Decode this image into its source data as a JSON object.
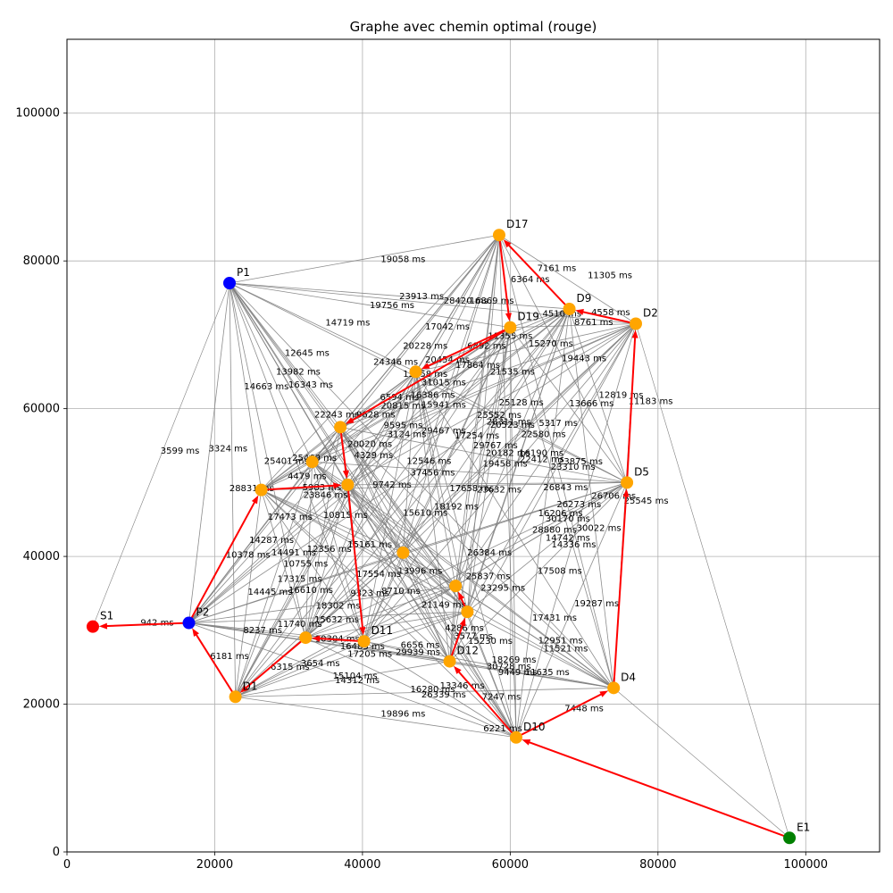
{
  "chart_data": {
    "type": "scatter",
    "title": "Graphe avec chemin optimal (rouge)",
    "xlim": [
      0,
      110000
    ],
    "ylim": [
      0,
      110000
    ],
    "xticks": [
      0,
      20000,
      40000,
      60000,
      80000,
      100000
    ],
    "yticks": [
      0,
      20000,
      40000,
      60000,
      80000,
      100000
    ],
    "grid": true,
    "colors": {
      "route": "#ff0000",
      "edge": "#808080",
      "destination": "#ffa500",
      "pickup": "#0000ff",
      "start": "#008000",
      "end": "#ff0000"
    },
    "nodes": [
      {
        "id": "E1",
        "x": 97800,
        "y": 1900,
        "kind": "start"
      },
      {
        "id": "S1",
        "x": 3500,
        "y": 30500,
        "kind": "end"
      },
      {
        "id": "P1",
        "x": 22000,
        "y": 77000,
        "kind": "pickup"
      },
      {
        "id": "P2",
        "x": 16500,
        "y": 31000,
        "kind": "pickup"
      },
      {
        "id": "D1",
        "x": 22800,
        "y": 21000,
        "kind": "destination"
      },
      {
        "id": "D2",
        "x": 77000,
        "y": 71500,
        "kind": "destination"
      },
      {
        "id": "D4",
        "x": 74000,
        "y": 22200,
        "kind": "destination"
      },
      {
        "id": "D5",
        "x": 75800,
        "y": 50000,
        "kind": "destination"
      },
      {
        "id": "D9",
        "x": 68000,
        "y": 73500,
        "kind": "destination"
      },
      {
        "id": "D10",
        "x": 60800,
        "y": 15500,
        "kind": "destination"
      },
      {
        "id": "D11",
        "x": 40200,
        "y": 28500,
        "kind": "destination"
      },
      {
        "id": "D12",
        "x": 51800,
        "y": 25800,
        "kind": "destination"
      },
      {
        "id": "D17",
        "x": 58500,
        "y": 83500,
        "kind": "destination"
      },
      {
        "id": "D19",
        "x": 60000,
        "y": 71000,
        "kind": "destination"
      },
      {
        "id": "",
        "x": 26300,
        "y": 49000,
        "kind": "destination"
      },
      {
        "id": "",
        "x": 32300,
        "y": 29000,
        "kind": "destination"
      },
      {
        "id": "",
        "x": 33200,
        "y": 52800,
        "kind": "destination"
      },
      {
        "id": "",
        "x": 37000,
        "y": 57500,
        "kind": "destination"
      },
      {
        "id": "",
        "x": 38000,
        "y": 49700,
        "kind": "destination"
      },
      {
        "id": "",
        "x": 47200,
        "y": 65000,
        "kind": "destination"
      },
      {
        "id": "",
        "x": 45500,
        "y": 40500,
        "kind": "destination"
      },
      {
        "id": "",
        "x": 52600,
        "y": 36000,
        "kind": "destination"
      },
      {
        "id": "",
        "x": 54200,
        "y": 32500,
        "kind": "destination"
      }
    ],
    "route_edges": [
      [
        "E1",
        "D10"
      ],
      [
        "D10",
        "D4"
      ],
      [
        "D4",
        "D5"
      ],
      [
        "D5",
        "D2"
      ],
      [
        "D2",
        "D9"
      ],
      [
        "D9",
        "D17"
      ],
      [
        "D17",
        "D19"
      ],
      [
        "D19",
        19
      ],
      [
        "D19",
        17
      ],
      [
        17,
        18
      ],
      [
        18,
        "D11"
      ],
      [
        "D11",
        15
      ],
      [
        15,
        "D1"
      ],
      [
        "D1",
        "P2"
      ],
      [
        "P2",
        14
      ],
      [
        14,
        18
      ],
      [
        "D10",
        "D12"
      ],
      [
        "D12",
        22
      ],
      [
        22,
        21
      ],
      [
        "P2",
        "S1"
      ]
    ],
    "edge_labels": [
      {
        "text": "19058 ms",
        "x": 45500,
        "y": 80200
      },
      {
        "text": "23913 ms",
        "x": 48000,
        "y": 75200
      },
      {
        "text": "19756 ms",
        "x": 44000,
        "y": 74000
      },
      {
        "text": "28420 ms",
        "x": 54000,
        "y": 74600
      },
      {
        "text": "16869 ms",
        "x": 57500,
        "y": 74600
      },
      {
        "text": "7161 ms",
        "x": 66300,
        "y": 79000
      },
      {
        "text": "11305 ms",
        "x": 73500,
        "y": 78000
      },
      {
        "text": "6364 ms",
        "x": 62700,
        "y": 77500
      },
      {
        "text": "14719 ms",
        "x": 38000,
        "y": 71600
      },
      {
        "text": "17042 ms",
        "x": 51500,
        "y": 71100
      },
      {
        "text": "4510 ms",
        "x": 67000,
        "y": 72800
      },
      {
        "text": "4558 ms",
        "x": 73600,
        "y": 73000
      },
      {
        "text": "8761 ms",
        "x": 71300,
        "y": 71700
      },
      {
        "text": "11355 ms",
        "x": 60000,
        "y": 69800
      },
      {
        "text": "12645 ms",
        "x": 32500,
        "y": 67500
      },
      {
        "text": "20228 ms",
        "x": 48500,
        "y": 68500
      },
      {
        "text": "6892 ms",
        "x": 56800,
        "y": 68500
      },
      {
        "text": "15270 ms",
        "x": 65500,
        "y": 68800
      },
      {
        "text": "24346 ms",
        "x": 44500,
        "y": 66300
      },
      {
        "text": "20454 ms",
        "x": 51500,
        "y": 66600
      },
      {
        "text": "17864 ms",
        "x": 55600,
        "y": 65900
      },
      {
        "text": "19443 ms",
        "x": 70000,
        "y": 66800
      },
      {
        "text": "13982 ms",
        "x": 31300,
        "y": 65000
      },
      {
        "text": "13458 ms",
        "x": 48500,
        "y": 64700
      },
      {
        "text": "21535 ms",
        "x": 60300,
        "y": 65000
      },
      {
        "text": "14663 ms",
        "x": 27000,
        "y": 63000
      },
      {
        "text": "16343 ms",
        "x": 33000,
        "y": 63200
      },
      {
        "text": "31015 ms",
        "x": 51000,
        "y": 63500
      },
      {
        "text": "6594 ms",
        "x": 45000,
        "y": 61500
      },
      {
        "text": "16386 ms",
        "x": 49500,
        "y": 61800
      },
      {
        "text": "12819 ms",
        "x": 75000,
        "y": 61800
      },
      {
        "text": "13666 ms",
        "x": 71000,
        "y": 60700
      },
      {
        "text": "11183 ms",
        "x": 79000,
        "y": 61000
      },
      {
        "text": "20815 ms",
        "x": 45500,
        "y": 60400
      },
      {
        "text": "15941 ms",
        "x": 51000,
        "y": 60500
      },
      {
        "text": "25128 ms",
        "x": 61500,
        "y": 60800
      },
      {
        "text": "22243 ms",
        "x": 36500,
        "y": 59200
      },
      {
        "text": "9628 ms",
        "x": 41800,
        "y": 59200
      },
      {
        "text": "25552 ms",
        "x": 58500,
        "y": 59100
      },
      {
        "text": "9595 ms",
        "x": 45500,
        "y": 57700
      },
      {
        "text": "20523 ms",
        "x": 60300,
        "y": 57800
      },
      {
        "text": "28311 ms",
        "x": 59800,
        "y": 58200
      },
      {
        "text": "5317 ms",
        "x": 66500,
        "y": 58000
      },
      {
        "text": "29467 ms",
        "x": 51000,
        "y": 57000
      },
      {
        "text": "17254 ms",
        "x": 55500,
        "y": 56300
      },
      {
        "text": "22580 ms",
        "x": 64500,
        "y": 56500
      },
      {
        "text": "3124 ms",
        "x": 46000,
        "y": 56500
      },
      {
        "text": "29767 ms",
        "x": 58000,
        "y": 55000
      },
      {
        "text": "20020 ms",
        "x": 41000,
        "y": 55200
      },
      {
        "text": "3599 ms",
        "x": 15300,
        "y": 54300
      },
      {
        "text": "3324 ms",
        "x": 21800,
        "y": 54600
      },
      {
        "text": "4329 ms",
        "x": 41500,
        "y": 53700
      },
      {
        "text": "20182 ms",
        "x": 59700,
        "y": 54000
      },
      {
        "text": "16190 ms",
        "x": 64200,
        "y": 54000
      },
      {
        "text": "25401 ms",
        "x": 29700,
        "y": 52900
      },
      {
        "text": "25469 ms",
        "x": 33500,
        "y": 53300
      },
      {
        "text": "12546 ms",
        "x": 49000,
        "y": 52900
      },
      {
        "text": "19458 ms",
        "x": 59300,
        "y": 52500
      },
      {
        "text": "22412 ms",
        "x": 64300,
        "y": 53100
      },
      {
        "text": "23875 ms",
        "x": 69500,
        "y": 52800
      },
      {
        "text": "23310 ms",
        "x": 68500,
        "y": 52100
      },
      {
        "text": "37456 ms",
        "x": 49500,
        "y": 51300
      },
      {
        "text": "4479 ms",
        "x": 32500,
        "y": 50800
      },
      {
        "text": "28831 ms",
        "x": 25000,
        "y": 49200
      },
      {
        "text": "9742 ms",
        "x": 44000,
        "y": 49700
      },
      {
        "text": "5983 ms",
        "x": 34500,
        "y": 49300
      },
      {
        "text": "23846 ms",
        "x": 35000,
        "y": 48300
      },
      {
        "text": "26843 ms",
        "x": 67500,
        "y": 49300
      },
      {
        "text": "23632 ms",
        "x": 58500,
        "y": 49000
      },
      {
        "text": "17658 ms",
        "x": 54800,
        "y": 49200
      },
      {
        "text": "26706 ms",
        "x": 74000,
        "y": 48200
      },
      {
        "text": "25545 ms",
        "x": 78400,
        "y": 47500
      },
      {
        "text": "26273 ms",
        "x": 69300,
        "y": 47000
      },
      {
        "text": "18192 ms",
        "x": 52700,
        "y": 46700
      },
      {
        "text": "17473 ms",
        "x": 30200,
        "y": 45300
      },
      {
        "text": "10815 ms",
        "x": 37700,
        "y": 45600
      },
      {
        "text": "15610 ms",
        "x": 48500,
        "y": 45900
      },
      {
        "text": "16206 ms",
        "x": 66800,
        "y": 45800
      },
      {
        "text": "30170 ms",
        "x": 67800,
        "y": 45100
      },
      {
        "text": "30022 ms",
        "x": 72000,
        "y": 43800
      },
      {
        "text": "28880 ms",
        "x": 66000,
        "y": 43600
      },
      {
        "text": "14287 ms",
        "x": 27700,
        "y": 42200
      },
      {
        "text": "14742 ms",
        "x": 67800,
        "y": 42500
      },
      {
        "text": "14336 ms",
        "x": 68600,
        "y": 41600
      },
      {
        "text": "12356 ms",
        "x": 35500,
        "y": 41000
      },
      {
        "text": "15161 ms",
        "x": 41000,
        "y": 41600
      },
      {
        "text": "14491 ms",
        "x": 30700,
        "y": 40500
      },
      {
        "text": "10378 ms",
        "x": 24500,
        "y": 40200
      },
      {
        "text": "26384 ms",
        "x": 57200,
        "y": 40500
      },
      {
        "text": "10755 ms",
        "x": 32300,
        "y": 39000
      },
      {
        "text": "17554 ms",
        "x": 42200,
        "y": 37600
      },
      {
        "text": "13996 ms",
        "x": 47800,
        "y": 38000
      },
      {
        "text": "17508 ms",
        "x": 66700,
        "y": 38000
      },
      {
        "text": "25837 ms",
        "x": 57000,
        "y": 37300
      },
      {
        "text": "17315 ms",
        "x": 31500,
        "y": 36900
      },
      {
        "text": "16610 ms",
        "x": 33000,
        "y": 35400
      },
      {
        "text": "23295 ms",
        "x": 59000,
        "y": 35700
      },
      {
        "text": "14445 ms",
        "x": 27500,
        "y": 35200
      },
      {
        "text": "9323 ms",
        "x": 41000,
        "y": 35000
      },
      {
        "text": "8710 ms",
        "x": 45200,
        "y": 35300
      },
      {
        "text": "19287 ms",
        "x": 71700,
        "y": 33600
      },
      {
        "text": "18302 ms",
        "x": 36700,
        "y": 33300
      },
      {
        "text": "21149 ms",
        "x": 51000,
        "y": 33400
      },
      {
        "text": "17431 ms",
        "x": 66000,
        "y": 31700
      },
      {
        "text": "11740 ms",
        "x": 31500,
        "y": 30800
      },
      {
        "text": "15632 ms",
        "x": 36500,
        "y": 31400
      },
      {
        "text": "942 ms",
        "x": 12200,
        "y": 31000
      },
      {
        "text": "8237 ms",
        "x": 26500,
        "y": 30000
      },
      {
        "text": "4286 ms",
        "x": 53800,
        "y": 30300
      },
      {
        "text": "3577 ms",
        "x": 55000,
        "y": 29200
      },
      {
        "text": "10304 ms",
        "x": 36600,
        "y": 28800
      },
      {
        "text": "15230 ms",
        "x": 57300,
        "y": 28500
      },
      {
        "text": "12951 ms",
        "x": 66800,
        "y": 28600
      },
      {
        "text": "11521 ms",
        "x": 67500,
        "y": 27500
      },
      {
        "text": "6656 ms",
        "x": 47800,
        "y": 28000
      },
      {
        "text": "29939 ms",
        "x": 47500,
        "y": 27000
      },
      {
        "text": "16483 ms",
        "x": 40000,
        "y": 27800
      },
      {
        "text": "17205 ms",
        "x": 41000,
        "y": 26800
      },
      {
        "text": "6181 ms",
        "x": 22000,
        "y": 26500
      },
      {
        "text": "18269 ms",
        "x": 60500,
        "y": 26000
      },
      {
        "text": "30728 ms",
        "x": 59800,
        "y": 25100
      },
      {
        "text": "6315 ms",
        "x": 30200,
        "y": 25000
      },
      {
        "text": "3654 ms",
        "x": 34300,
        "y": 25500
      },
      {
        "text": "9449 ms",
        "x": 61000,
        "y": 24300
      },
      {
        "text": "11635 ms",
        "x": 65000,
        "y": 24300
      },
      {
        "text": "15104 ms",
        "x": 39000,
        "y": 23800
      },
      {
        "text": "14312 ms",
        "x": 39300,
        "y": 23200
      },
      {
        "text": "13346 ms",
        "x": 53500,
        "y": 22500
      },
      {
        "text": "16280 ms",
        "x": 49500,
        "y": 22000
      },
      {
        "text": "26339 ms",
        "x": 51000,
        "y": 21300
      },
      {
        "text": "7247 ms",
        "x": 58800,
        "y": 21000
      },
      {
        "text": "7448 ms",
        "x": 70000,
        "y": 19400
      },
      {
        "text": "19896 ms",
        "x": 45500,
        "y": 18700
      },
      {
        "text": "6221 ms",
        "x": 59000,
        "y": 16700
      }
    ]
  }
}
